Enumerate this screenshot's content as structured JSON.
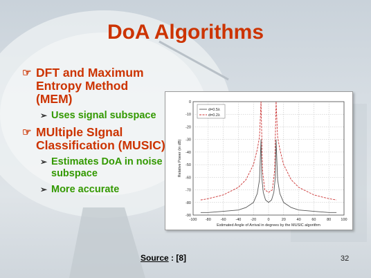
{
  "slide": {
    "title": "DoA Algorithms",
    "bullets": [
      {
        "text": "DFT and Maximum Entropy Method (MEM)",
        "subs": [
          "Uses signal subspace"
        ]
      },
      {
        "text": "MUltiple SIgnal Classification (MUSIC)",
        "subs": [
          "Estimates DoA in noise subspace",
          "More accurate"
        ]
      }
    ],
    "source_label": "Source",
    "source_sep": " : ",
    "source_ref": "[8]",
    "page_number": "32"
  },
  "chart_data": {
    "type": "line",
    "xlabel": "Estimated Angle of Arrival in degrees by the MUSIC algorithm",
    "ylabel": "Relative Power (in dB)",
    "xlim": [
      -100,
      100
    ],
    "ylim": [
      -90,
      0
    ],
    "xticks": [
      -100,
      -80,
      -60,
      -40,
      -20,
      0,
      20,
      40,
      60,
      80,
      100
    ],
    "yticks": [
      0,
      -10,
      -20,
      -30,
      -40,
      -50,
      -60,
      -70,
      -80,
      -90
    ],
    "grid": true,
    "legend_position": "top-left",
    "series": [
      {
        "name": "d=0.5λ",
        "color": "#555555",
        "dash": "solid",
        "x": [
          -90,
          -80,
          -60,
          -40,
          -30,
          -20,
          -15,
          -12,
          -10,
          -9,
          -7,
          -4,
          0,
          4,
          7,
          9,
          10,
          12,
          15,
          20,
          30,
          40,
          60,
          80,
          90
        ],
        "y": [
          -88,
          -88,
          -87,
          -86,
          -84,
          -80,
          -73,
          -62,
          -30,
          -60,
          -72,
          -78,
          -80,
          -78,
          -72,
          -60,
          -30,
          -62,
          -73,
          -80,
          -84,
          -86,
          -87,
          -88,
          -88
        ]
      },
      {
        "name": "d=0.2λ",
        "color": "#cc3333",
        "dash": "dashed",
        "x": [
          -90,
          -80,
          -60,
          -40,
          -30,
          -20,
          -15,
          -12,
          -10,
          -8,
          -5,
          0,
          5,
          8,
          10,
          12,
          15,
          20,
          30,
          40,
          60,
          80,
          90
        ],
        "y": [
          -78,
          -77,
          -74,
          -68,
          -62,
          -50,
          -38,
          -28,
          0,
          -55,
          -70,
          -72,
          -70,
          -55,
          0,
          -28,
          -38,
          -50,
          -62,
          -68,
          -74,
          -77,
          -78
        ]
      }
    ]
  }
}
